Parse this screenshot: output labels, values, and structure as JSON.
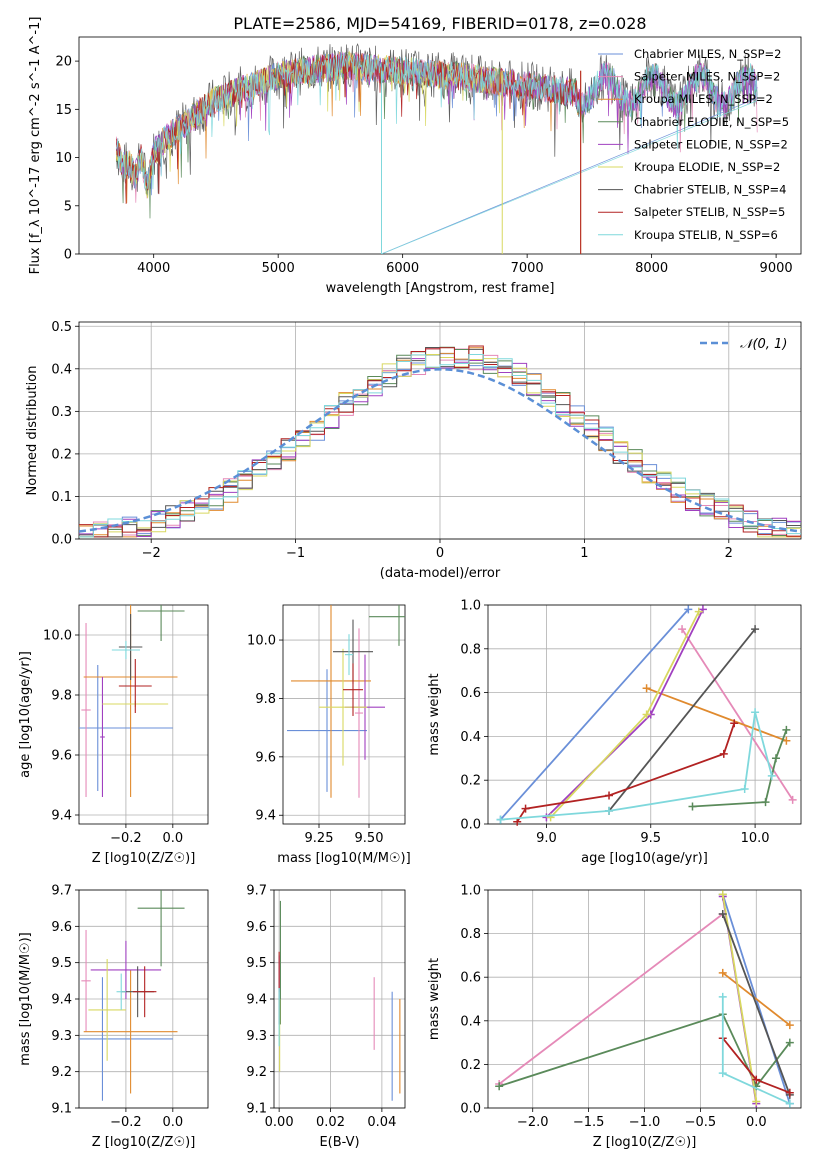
{
  "title": "PLATE=2586, MJD=54169, FIBERID=0178, z=0.028",
  "colors": [
    "#6a8fd8",
    "#e58ab8",
    "#e08a2e",
    "#5a8a5a",
    "#a040c0",
    "#d8d860",
    "#555555",
    "#b22222",
    "#7fd8dc"
  ],
  "chart_data": [
    {
      "id": "spectrum",
      "type": "line",
      "xlabel": "wavelength [Angstrom, rest frame]",
      "ylabel": "Flux [f_λ 10^-17 erg cm^-2 s^-1 A^-1]",
      "xlim": [
        3400,
        9200
      ],
      "ylim": [
        0,
        22.5
      ],
      "xticks": [
        4000,
        5000,
        6000,
        7000,
        8000,
        9000
      ],
      "yticks": [
        0,
        5,
        10,
        15,
        20
      ],
      "legend_position": "top-right",
      "envelope": {
        "x": [
          3700,
          3750,
          3800,
          3850,
          3900,
          3950,
          4000,
          4100,
          4200,
          4300,
          4400,
          4500,
          4600,
          4700,
          4800,
          4900,
          5000,
          5100,
          5200,
          5300,
          5400,
          5500,
          5600,
          5700,
          5800,
          5900,
          6000,
          6100,
          6200,
          6300,
          6400,
          6500,
          6600,
          6700,
          6800,
          6900,
          7000,
          7100,
          7200,
          7300,
          7400
        ],
        "y": [
          11,
          9,
          9.5,
          8,
          10,
          7,
          10.5,
          12,
          13,
          14,
          15,
          16,
          16.5,
          17,
          17.5,
          18,
          18.5,
          18.7,
          19,
          19.2,
          19.3,
          19.5,
          19.5,
          19.3,
          19.2,
          19.1,
          19,
          18.9,
          18.7,
          18.6,
          18.5,
          18.4,
          18.2,
          18,
          17.8,
          17.6,
          17.5,
          17.3,
          17.1,
          16.9,
          16.7
        ]
      },
      "series": [
        {
          "name": "Chabrier MILES, N_SSP=2"
        },
        {
          "name": "Salpeter MILES, N_SSP=2"
        },
        {
          "name": "Kroupa MILES, N_SSP=2"
        },
        {
          "name": "Chabrier ELODIE, N_SSP=5"
        },
        {
          "name": "Salpeter ELODIE, N_SSP=2"
        },
        {
          "name": "Kroupa ELODIE, N_SSP=2"
        },
        {
          "name": "Chabrier STELIB, N_SSP=4"
        },
        {
          "name": "Salpeter STELIB, N_SSP=5"
        },
        {
          "name": "Kroupa STELIB, N_SSP=6"
        }
      ]
    },
    {
      "id": "residuals",
      "type": "line",
      "xlabel": "(data-model)/error",
      "ylabel": "Normed distribution",
      "xlim": [
        -2.5,
        2.5
      ],
      "ylim": [
        0,
        0.51
      ],
      "xticks": [
        -2,
        -1,
        0,
        1,
        2
      ],
      "xticklabels": [
        "−2",
        "−1",
        "0",
        "1",
        "2"
      ],
      "yticks": [
        0.0,
        0.1,
        0.2,
        0.3,
        0.4,
        0.5
      ],
      "yticklabels": [
        "0.0",
        "0.1",
        "0.2",
        "0.3",
        "0.4",
        "0.5"
      ],
      "legend_position": "top-right",
      "gauss_label": "𝒩(0, 1)",
      "hist_bin_width": 0.1,
      "hist_x0": -2.5
    },
    {
      "id": "Z-age",
      "type": "scatter",
      "xlabel": "Z [log10(Z/Z☉)]",
      "ylabel": "age  [log10(age/yr)]",
      "xlim": [
        -0.4,
        0.15
      ],
      "ylim": [
        9.37,
        10.1
      ],
      "xticks": [
        -0.2,
        0.0
      ],
      "xticklabels": [
        "−0.2",
        "0.0"
      ],
      "yticks": [
        9.4,
        9.6,
        9.8,
        10.0
      ],
      "yticklabels": [
        "9.4",
        "9.6",
        "9.8",
        "10.0"
      ],
      "points": [
        {
          "x": -0.32,
          "y": 9.69,
          "xerr": 0.32,
          "yerr": 0.21
        },
        {
          "x": -0.37,
          "y": 9.75,
          "xerr": 0.02,
          "yerr": 0.29
        },
        {
          "x": -0.18,
          "y": 9.86,
          "xerr": 0.2,
          "yerr": 0.4
        },
        {
          "x": -0.05,
          "y": 10.08,
          "xerr": 0.1,
          "yerr": 0.1
        },
        {
          "x": -0.3,
          "y": 9.66,
          "xerr": 0.01,
          "yerr": 0.2
        },
        {
          "x": -0.16,
          "y": 9.77,
          "xerr": 0.14,
          "yerr": 0.01
        },
        {
          "x": -0.18,
          "y": 9.96,
          "xerr": 0.05,
          "yerr": 0.11
        },
        {
          "x": -0.16,
          "y": 9.83,
          "xerr": 0.07,
          "yerr": 0.09
        },
        {
          "x": -0.2,
          "y": 9.95,
          "xerr": 0.06,
          "yerr": 0.03
        }
      ]
    },
    {
      "id": "mass-age",
      "type": "scatter",
      "xlabel": "mass [log10(M/M☉)]",
      "ylabel": "",
      "xlim": [
        9.07,
        9.68
      ],
      "ylim": [
        9.37,
        10.12
      ],
      "xticks": [
        9.25,
        9.5
      ],
      "xticklabels": [
        "9.25",
        "9.50"
      ],
      "yticks": [
        9.4,
        9.6,
        9.8,
        10.0
      ],
      "yticklabels": [
        "9.4",
        "9.6",
        "9.8",
        "10.0"
      ],
      "points": [
        {
          "x": 9.29,
          "y": 9.69,
          "xerr": 0.2,
          "yerr": 0.21
        },
        {
          "x": 9.45,
          "y": 9.75,
          "xerr": 0.02,
          "yerr": 0.29
        },
        {
          "x": 9.31,
          "y": 9.86,
          "xerr": 0.2,
          "yerr": 0.4
        },
        {
          "x": 9.65,
          "y": 10.08,
          "xerr": 0.15,
          "yerr": 0.1
        },
        {
          "x": 9.48,
          "y": 9.77,
          "xerr": 0.1,
          "yerr": 0.18
        },
        {
          "x": 9.37,
          "y": 9.77,
          "xerr": 0.12,
          "yerr": 0.2
        },
        {
          "x": 9.42,
          "y": 9.96,
          "xerr": 0.1,
          "yerr": 0.11
        },
        {
          "x": 9.42,
          "y": 9.83,
          "xerr": 0.05,
          "yerr": 0.09
        },
        {
          "x": 9.4,
          "y": 9.95,
          "xerr": 0.02,
          "yerr": 0.07
        }
      ]
    },
    {
      "id": "age-weight",
      "type": "line",
      "xlabel": "age  [log10(age/yr)]",
      "ylabel": "mass weight",
      "xlim": [
        8.72,
        10.22
      ],
      "ylim": [
        0,
        1.0
      ],
      "xticks": [
        9.0,
        9.5,
        10.0
      ],
      "xticklabels": [
        "9.0",
        "9.5",
        "10.0"
      ],
      "yticks": [
        0,
        0.2,
        0.4,
        0.6,
        0.8,
        1.0
      ],
      "yticklabels": [
        "0.0",
        "0.2",
        "0.4",
        "0.6",
        "0.8",
        "1.0"
      ],
      "lines": [
        {
          "x": [
            8.78,
            9.68
          ],
          "y": [
            0.02,
            0.98
          ]
        },
        {
          "x": [
            9.65,
            10.18
          ],
          "y": [
            0.89,
            0.11
          ]
        },
        {
          "x": [
            9.48,
            10.15
          ],
          "y": [
            0.62,
            0.38
          ]
        },
        {
          "x": [
            9.7,
            10.05,
            10.1,
            10.15
          ],
          "y": [
            0.08,
            0.1,
            0.3,
            0.43
          ]
        },
        {
          "x": [
            9.0,
            9.5,
            9.75
          ],
          "y": [
            0.03,
            0.5,
            0.98
          ]
        },
        {
          "x": [
            9.02,
            9.48,
            9.73
          ],
          "y": [
            0.03,
            0.5,
            0.97
          ]
        },
        {
          "x": [
            9.3,
            10.0
          ],
          "y": [
            0.06,
            0.89
          ]
        },
        {
          "x": [
            8.86,
            8.9,
            9.3,
            9.85,
            9.9
          ],
          "y": [
            0.01,
            0.07,
            0.13,
            0.32,
            0.46
          ]
        },
        {
          "x": [
            8.78,
            9.3,
            9.95,
            10.0,
            10.08
          ],
          "y": [
            0.02,
            0.06,
            0.16,
            0.51,
            0.22
          ]
        }
      ]
    },
    {
      "id": "Z-mass",
      "type": "scatter",
      "xlabel": "Z [log10(Z/Z☉)]",
      "ylabel": "mass [log10(M/M☉)]",
      "xlim": [
        -0.4,
        0.15
      ],
      "ylim": [
        9.1,
        9.7
      ],
      "xticks": [
        -0.2,
        0.0
      ],
      "xticklabels": [
        "−0.2",
        "0.0"
      ],
      "yticks": [
        9.1,
        9.2,
        9.3,
        9.4,
        9.5,
        9.6,
        9.7
      ],
      "yticklabels": [
        "9.1",
        "9.2",
        "9.3",
        "9.4",
        "9.5",
        "9.6",
        "9.7"
      ],
      "points": [
        {
          "x": -0.3,
          "y": 9.29,
          "xerr": 0.3,
          "yerr": 0.17
        },
        {
          "x": -0.37,
          "y": 9.45,
          "xerr": 0.02,
          "yerr": 0.14
        },
        {
          "x": -0.18,
          "y": 9.31,
          "xerr": 0.2,
          "yerr": 0.17
        },
        {
          "x": -0.05,
          "y": 9.65,
          "xerr": 0.1,
          "yerr": 0.16
        },
        {
          "x": -0.2,
          "y": 9.48,
          "xerr": 0.15,
          "yerr": 0.08
        },
        {
          "x": -0.28,
          "y": 9.37,
          "xerr": 0.08,
          "yerr": 0.14
        },
        {
          "x": -0.15,
          "y": 9.42,
          "xerr": 0.07,
          "yerr": 0.07
        },
        {
          "x": -0.12,
          "y": 9.42,
          "xerr": 0.05,
          "yerr": 0.07
        },
        {
          "x": -0.22,
          "y": 9.42,
          "xerr": 0.02,
          "yerr": 0.05
        }
      ]
    },
    {
      "id": "EBV-mass",
      "type": "scatter",
      "xlabel": "E(B-V)",
      "ylabel": "",
      "xlim": [
        -0.002,
        0.049
      ],
      "ylim": [
        9.1,
        9.7
      ],
      "xticks": [
        0.0,
        0.02,
        0.04
      ],
      "xticklabels": [
        "0.00",
        "0.02",
        "0.04"
      ],
      "yticks": [
        9.1,
        9.2,
        9.3,
        9.4,
        9.5,
        9.6,
        9.7
      ],
      "yticklabels": [
        "9.1",
        "9.2",
        "9.3",
        "9.4",
        "9.5",
        "9.6",
        "9.7"
      ],
      "points": [
        {
          "x": 0.044,
          "y": 9.27,
          "xerr": 0,
          "yerr": 0.15
        },
        {
          "x": 0.037,
          "y": 9.36,
          "xerr": 0,
          "yerr": 0.1
        },
        {
          "x": 0.047,
          "y": 9.27,
          "xerr": 0,
          "yerr": 0.13
        },
        {
          "x": 0.0005,
          "y": 9.5,
          "xerr": 0,
          "yerr": 0.17
        },
        {
          "x": 0.0,
          "y": 9.47,
          "xerr": 0,
          "yerr": 0.05
        },
        {
          "x": 0.0002,
          "y": 9.3,
          "xerr": 0,
          "yerr": 0.1
        },
        {
          "x": 0.0,
          "y": 9.38,
          "xerr": 0,
          "yerr": 0.05
        },
        {
          "x": 0.0,
          "y": 9.48,
          "xerr": 0,
          "yerr": 0.05
        },
        {
          "x": 0.0,
          "y": 9.35,
          "xerr": 0,
          "yerr": 0.08
        }
      ]
    },
    {
      "id": "Z-weight",
      "type": "line",
      "xlabel": "Z [log10(Z/Z☉)]",
      "ylabel": "mass weight",
      "xlim": [
        -2.4,
        0.4
      ],
      "ylim": [
        0,
        1.0
      ],
      "xticks": [
        -2.0,
        -1.5,
        -1.0,
        -0.5,
        0.0
      ],
      "xticklabels": [
        "−2.0",
        "−1.5",
        "−1.0",
        "−0.5",
        "0.0"
      ],
      "yticks": [
        0,
        0.2,
        0.4,
        0.6,
        0.8,
        1.0
      ],
      "yticklabels": [
        "0.0",
        "0.2",
        "0.4",
        "0.6",
        "0.8",
        "1.0"
      ],
      "lines": [
        {
          "x": [
            -0.3,
            0.3
          ],
          "y": [
            0.98,
            0.02
          ]
        },
        {
          "x": [
            -2.3,
            -0.3
          ],
          "y": [
            0.11,
            0.89
          ]
        },
        {
          "x": [
            -0.3,
            0.3
          ],
          "y": [
            0.62,
            0.38
          ]
        },
        {
          "x": [
            -2.3,
            -0.3,
            0.0,
            0.3
          ],
          "y": [
            0.1,
            0.43,
            0.1,
            0.3
          ]
        },
        {
          "x": [
            -0.3,
            0.0
          ],
          "y": [
            0.97,
            0.02
          ]
        },
        {
          "x": [
            -0.3,
            0.0
          ],
          "y": [
            0.98,
            0.03
          ]
        },
        {
          "x": [
            -0.3,
            0.3
          ],
          "y": [
            0.89,
            0.06
          ]
        },
        {
          "x": [
            -0.3,
            0.0,
            0.3
          ],
          "y": [
            0.32,
            0.13,
            0.07
          ]
        },
        {
          "x": [
            -0.3,
            -0.3,
            0.3
          ],
          "y": [
            0.51,
            0.16,
            0.02
          ]
        }
      ]
    }
  ]
}
